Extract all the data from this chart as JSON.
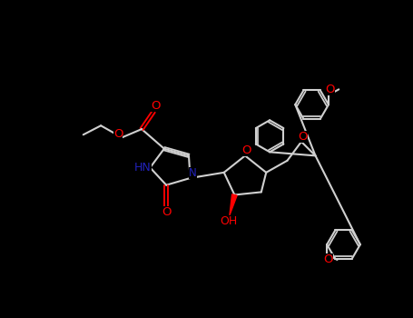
{
  "bg_color": "#000000",
  "bond_color": "#d0d0d0",
  "bond_width": 1.5,
  "red_color": "#ff0000",
  "blue_color": "#2222bb",
  "fs": 8.5,
  "xlim": [
    0,
    10
  ],
  "ylim": [
    0,
    7.7
  ]
}
